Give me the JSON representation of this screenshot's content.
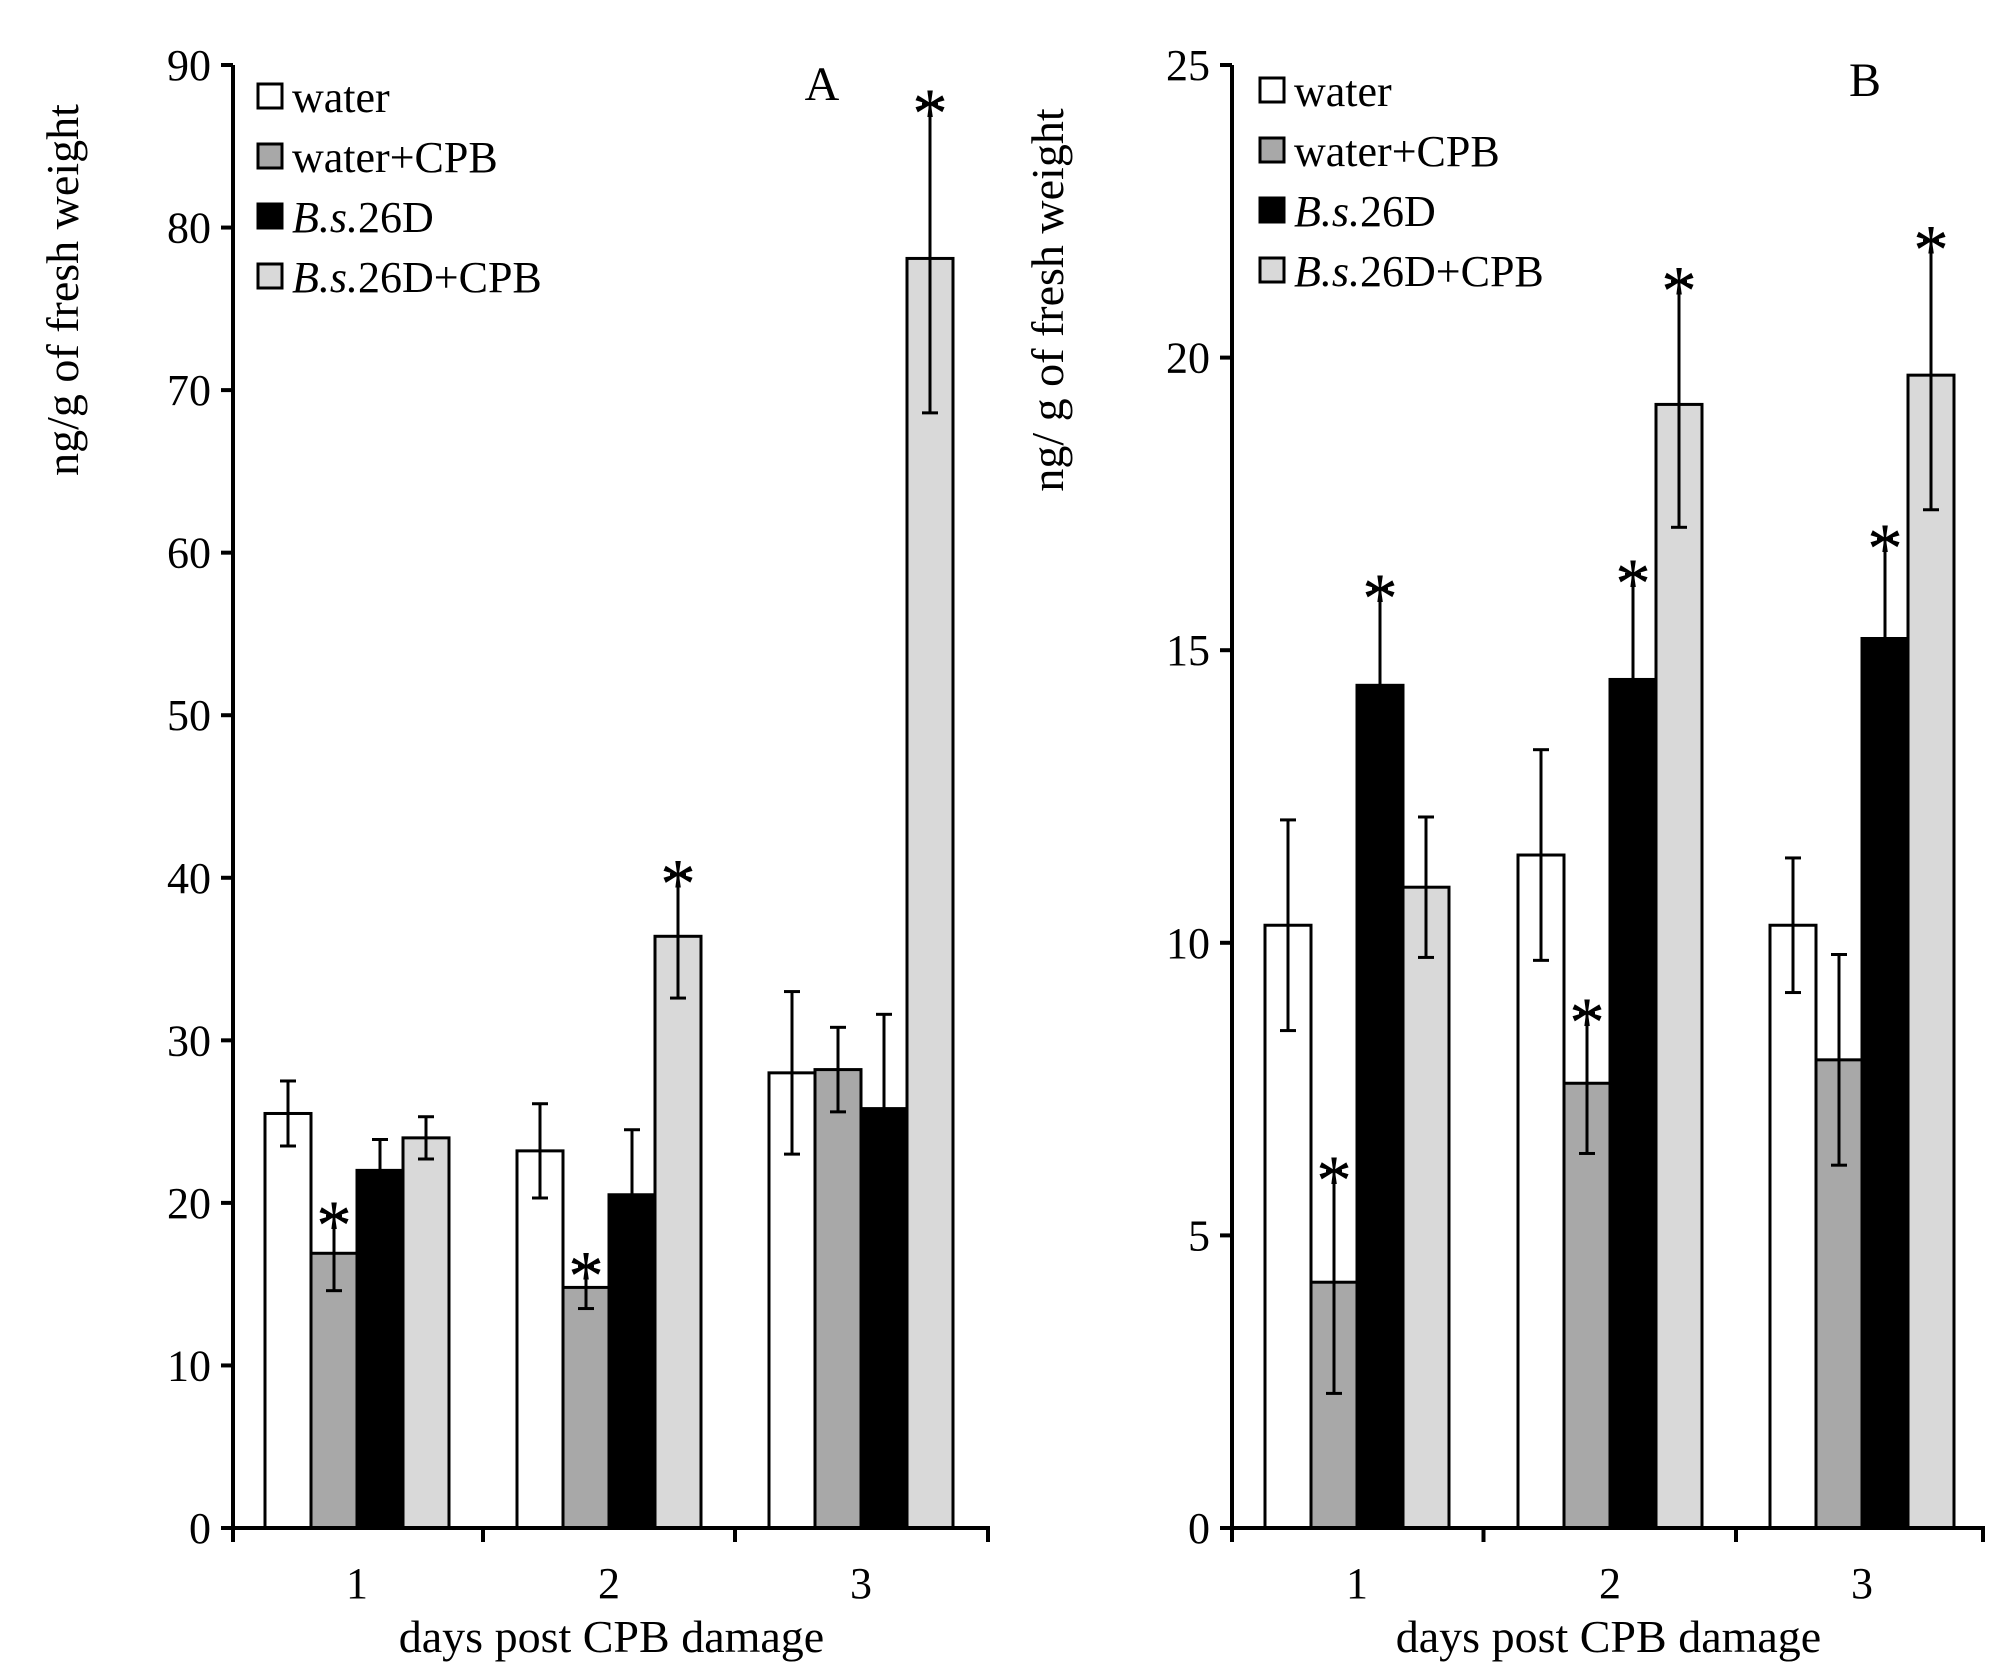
{
  "colors": {
    "water": "#ffffff",
    "water_cpb": "#a8a8a8",
    "bs26d": "#000000",
    "bs26d_cpb": "#d9d9d9"
  },
  "chart_data": [
    {
      "type": "bar",
      "panel_label": "A",
      "title": "",
      "xlabel": "days post CPB damage",
      "ylabel": "ng/g of fresh weight",
      "ylim": [
        0,
        90
      ],
      "yticks": [
        0,
        10,
        20,
        30,
        40,
        50,
        60,
        70,
        80,
        90
      ],
      "ytick_labels": [
        "0",
        "10",
        "20",
        "30",
        "40",
        "50",
        "60",
        "70",
        "80",
        "90"
      ],
      "categories": [
        "1",
        "2",
        "3"
      ],
      "legend": {
        "position": "top-left",
        "entries": [
          {
            "prefix": "",
            "italic": "",
            "suffix": "water"
          },
          {
            "prefix": "",
            "italic": "",
            "suffix": "water+CPB"
          },
          {
            "prefix": "",
            "italic": "B.s.",
            "suffix": "26D"
          },
          {
            "prefix": "",
            "italic": "B.s.",
            "suffix": "26D+CPB"
          }
        ]
      },
      "series": [
        {
          "name": "water",
          "values": [
            25.5,
            23.2,
            28.0
          ],
          "errors": [
            2.0,
            2.9,
            5.0
          ],
          "significant": [
            false,
            false,
            false
          ]
        },
        {
          "name": "water+CPB",
          "values": [
            16.9,
            14.8,
            28.2
          ],
          "errors": [
            2.3,
            1.3,
            2.6
          ],
          "significant": [
            true,
            true,
            false
          ]
        },
        {
          "name": "B.s.26D",
          "values": [
            22.0,
            20.5,
            25.8
          ],
          "errors": [
            1.9,
            4.0,
            5.8
          ],
          "significant": [
            false,
            false,
            false
          ]
        },
        {
          "name": "B.s.26D+CPB",
          "values": [
            24.0,
            36.4,
            78.1
          ],
          "errors": [
            1.3,
            3.8,
            9.5
          ],
          "significant": [
            false,
            true,
            true
          ]
        }
      ],
      "star_symbol": "*"
    },
    {
      "type": "bar",
      "panel_label": "B",
      "title": "",
      "xlabel": "days post CPB damage",
      "ylabel": "ng/ g of fresh weight",
      "ylim": [
        0,
        25
      ],
      "yticks": [
        0,
        5,
        10,
        15,
        20,
        25
      ],
      "ytick_labels": [
        "0",
        "5",
        "10",
        "15",
        "20",
        "25"
      ],
      "categories": [
        "1",
        "2",
        "3"
      ],
      "legend": {
        "position": "top-left",
        "entries": [
          {
            "prefix": "",
            "italic": "",
            "suffix": "water"
          },
          {
            "prefix": "",
            "italic": "",
            "suffix": "water+CPB"
          },
          {
            "prefix": "",
            "italic": "B.s.",
            "suffix": "26D"
          },
          {
            "prefix": "",
            "italic": "B.s.",
            "suffix": "26D+CPB"
          }
        ]
      },
      "series": [
        {
          "name": "water",
          "values": [
            10.3,
            11.5,
            10.3
          ],
          "errors": [
            1.8,
            1.8,
            1.15
          ],
          "significant": [
            false,
            false,
            false
          ]
        },
        {
          "name": "water+CPB",
          "values": [
            4.2,
            7.6,
            8.0
          ],
          "errors": [
            1.9,
            1.2,
            1.8
          ],
          "significant": [
            true,
            true,
            false
          ]
        },
        {
          "name": "B.s.26D",
          "values": [
            14.4,
            14.5,
            15.2
          ],
          "errors": [
            1.65,
            1.8,
            1.7
          ],
          "significant": [
            true,
            true,
            true
          ]
        },
        {
          "name": "B.s.26D+CPB",
          "values": [
            10.95,
            19.2,
            19.7
          ],
          "errors": [
            1.2,
            2.1,
            2.3
          ],
          "significant": [
            false,
            true,
            true
          ]
        }
      ],
      "star_symbol": "*"
    }
  ]
}
